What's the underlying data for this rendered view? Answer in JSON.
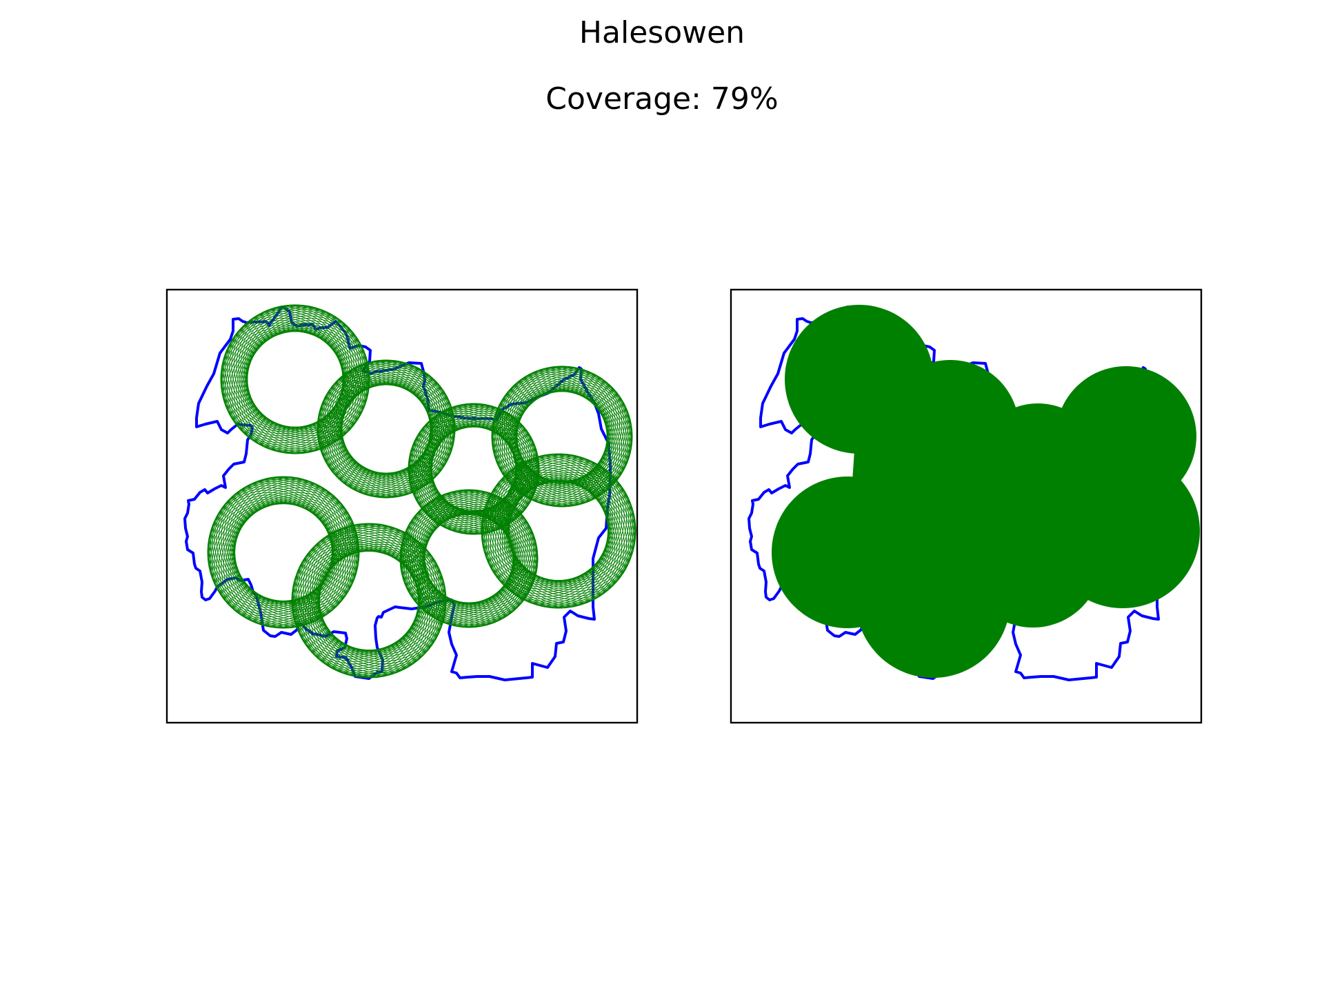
{
  "figure": {
    "title": "Halesowen",
    "subtitle": "Coverage: 79%",
    "boundary_color": "#0000ff",
    "coverage_color": "#008000",
    "panels": [
      {
        "view": "outline",
        "coverage_style": "concentric circles"
      },
      {
        "view": "filled",
        "coverage_style": "solid fill"
      }
    ]
  }
}
